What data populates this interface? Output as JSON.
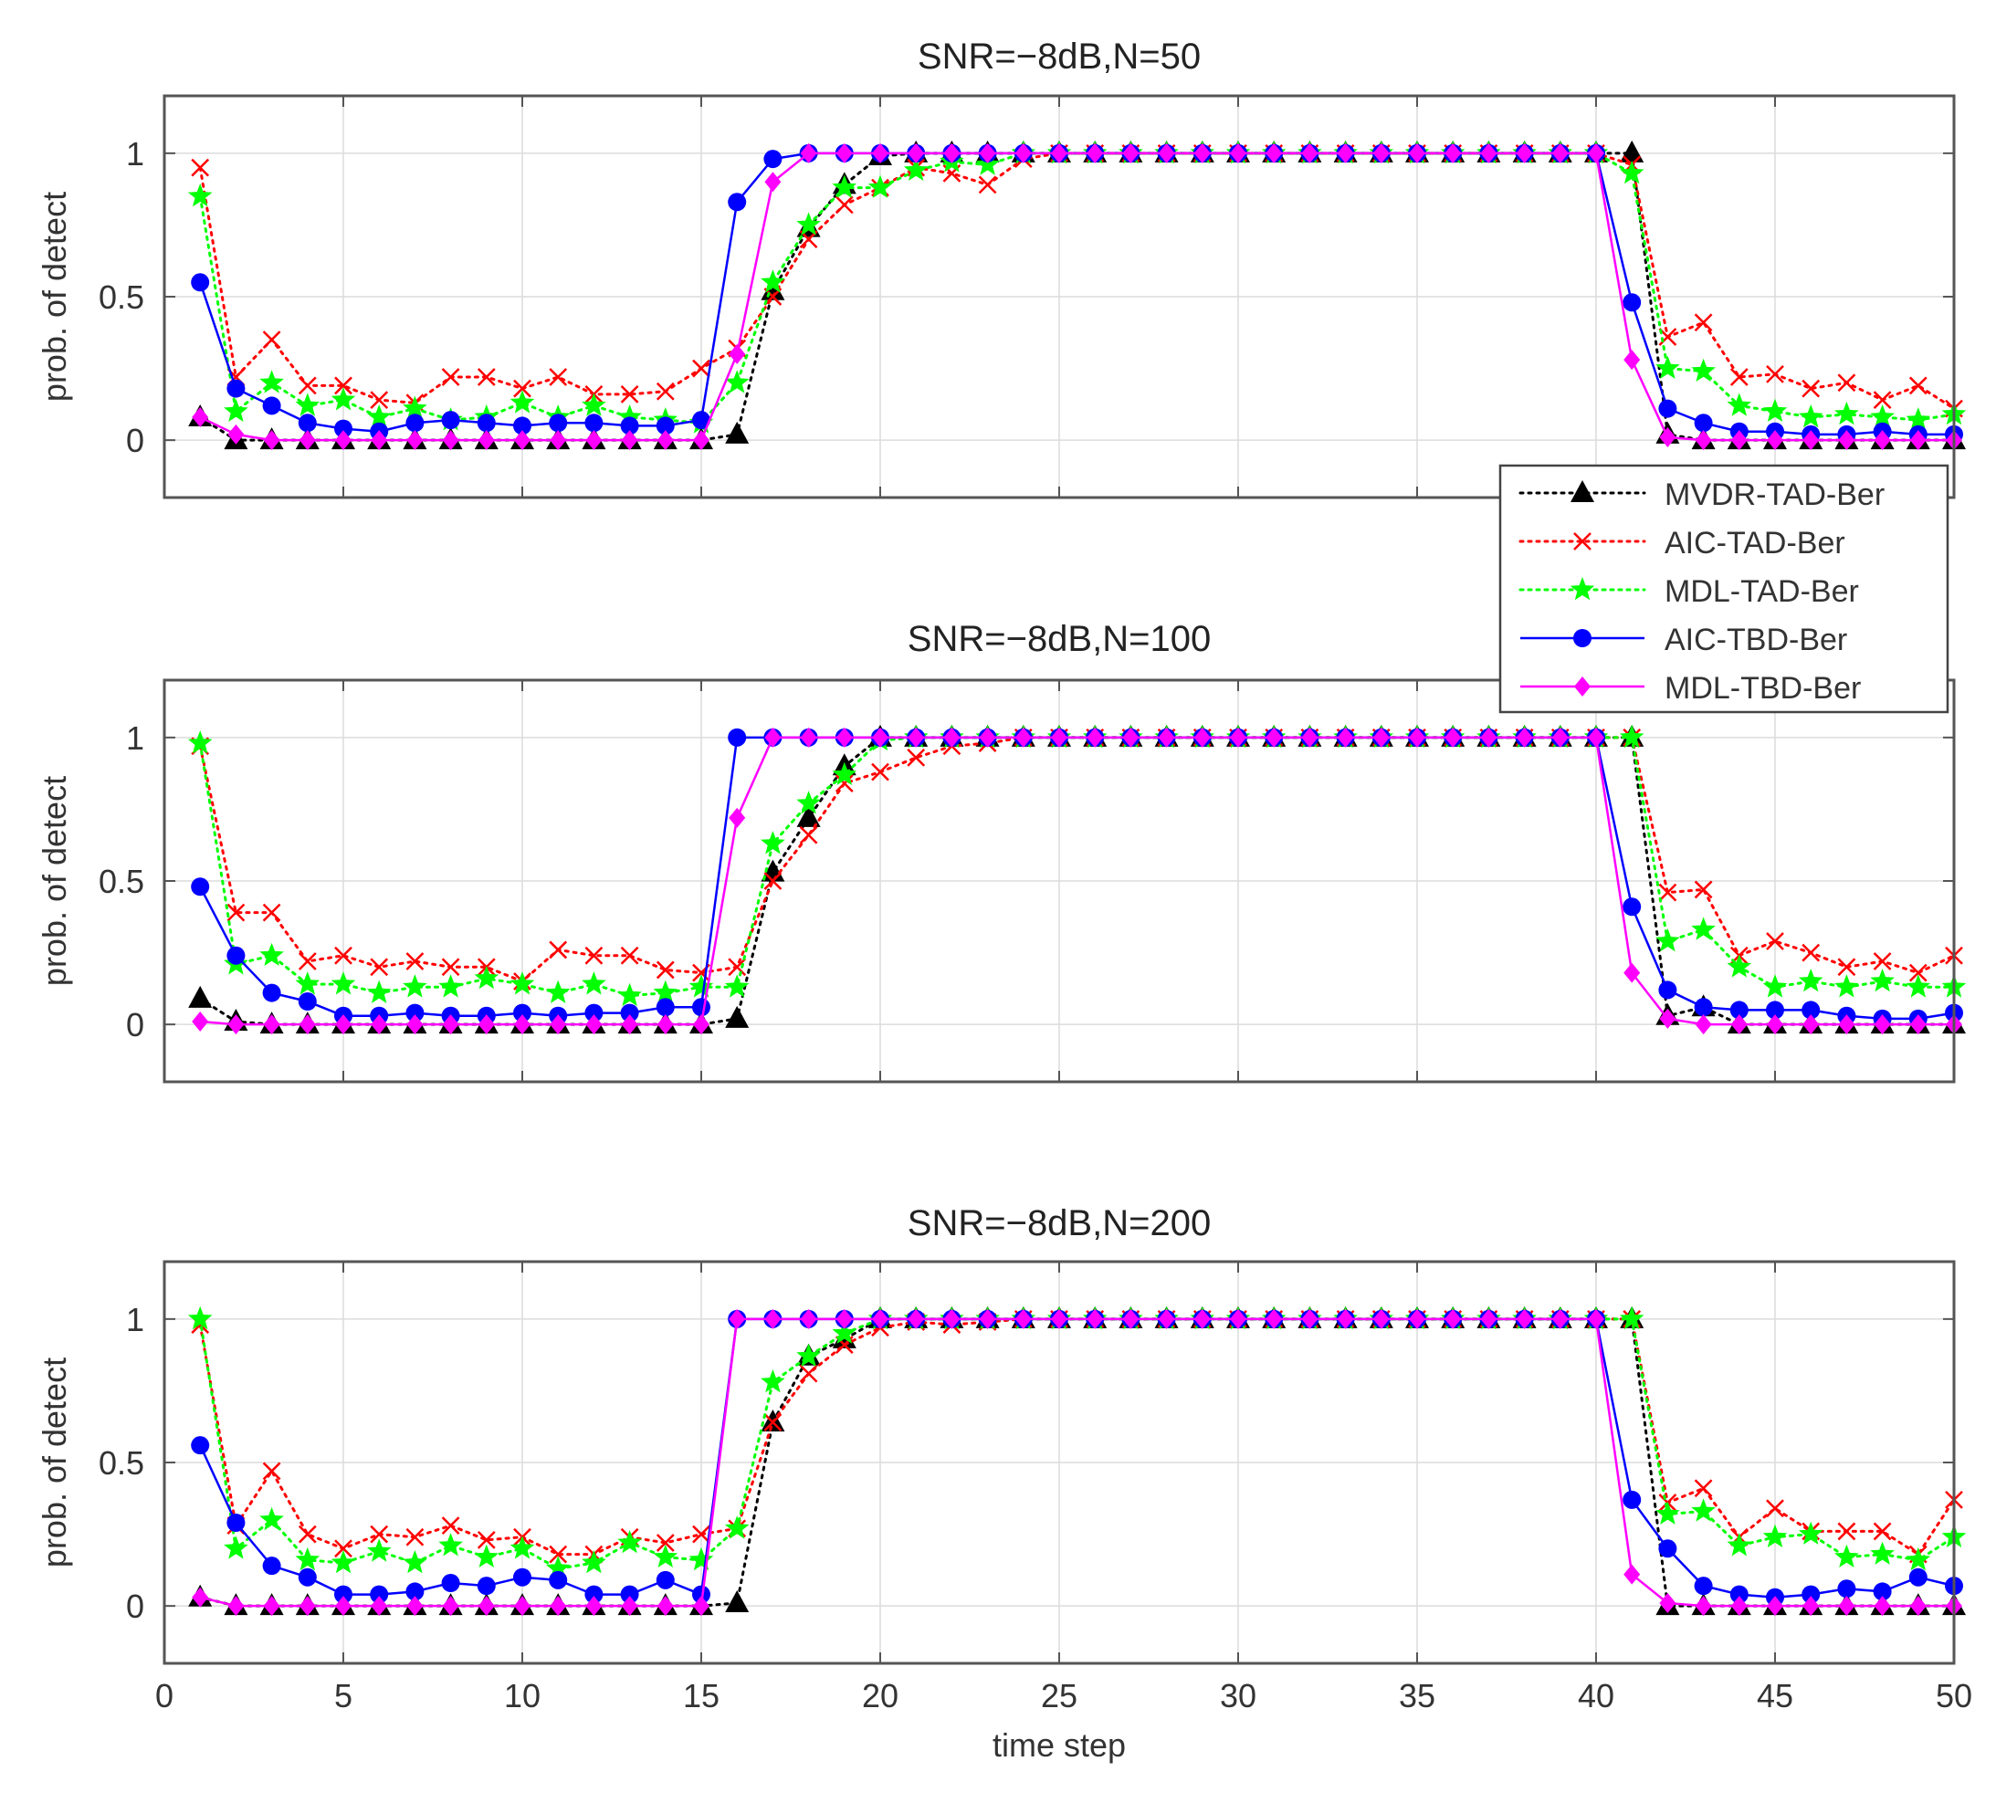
{
  "colors": {
    "MVDR-TAD-Ber": "#000000",
    "AIC-TAD-Ber": "#ff0000",
    "MDL-TAD-Ber": "#00ff00",
    "AIC-TBD-Ber": "#0000ff",
    "MDL-TBD-Ber": "#ff00ff",
    "frame": "#555555",
    "grid": "#dcdcdc"
  },
  "chart_data": [
    {
      "type": "line",
      "title": "SNR=−8dB,N=50",
      "xlabel": "",
      "ylabel": "prob. of detect",
      "xlim": [
        0,
        50
      ],
      "ylim": [
        -0.2,
        1.2
      ],
      "xticks": [
        0,
        5,
        10,
        15,
        20,
        25,
        30,
        35,
        40,
        45,
        50
      ],
      "xtick_labels": [],
      "yticks": [
        0,
        0.5,
        1
      ],
      "ytick_labels": [
        "0",
        "0.5",
        "1"
      ],
      "grid": true,
      "legend": "right, between panel 1 and panel 2",
      "legend_entries": [
        "MVDR-TAD-Ber",
        "AIC-TAD-Ber",
        "MDL-TAD-Ber",
        "AIC-TBD-Ber",
        "MDL-TBD-Ber"
      ],
      "x": [
        1,
        2,
        3,
        4,
        5,
        6,
        7,
        8,
        9,
        10,
        11,
        12,
        13,
        14,
        15,
        16,
        17,
        18,
        19,
        20,
        21,
        22,
        23,
        24,
        25,
        26,
        27,
        28,
        29,
        30,
        31,
        32,
        33,
        34,
        35,
        36,
        37,
        38,
        39,
        40,
        41,
        42,
        43,
        44,
        45,
        46,
        47,
        48,
        49,
        50
      ],
      "series": [
        {
          "name": "MVDR-TAD-Ber",
          "marker": "triangle",
          "style": "dotted",
          "values": [
            0.08,
            0,
            0,
            0,
            0,
            0,
            0,
            0,
            0,
            0,
            0,
            0,
            0,
            0,
            0,
            0.02,
            0.52,
            0.74,
            0.89,
            0.99,
            1,
            1,
            1,
            1,
            1,
            1,
            1,
            1,
            1,
            1,
            1,
            1,
            1,
            1,
            1,
            1,
            1,
            1,
            1,
            1,
            1,
            0.02,
            0,
            0,
            0,
            0,
            0,
            0,
            0,
            0
          ]
        },
        {
          "name": "AIC-TAD-Ber",
          "marker": "x",
          "style": "dotted",
          "values": [
            0.95,
            0.22,
            0.35,
            0.19,
            0.19,
            0.14,
            0.13,
            0.22,
            0.22,
            0.18,
            0.22,
            0.16,
            0.16,
            0.17,
            0.25,
            0.32,
            0.5,
            0.7,
            0.82,
            0.88,
            0.95,
            0.93,
            0.89,
            0.98,
            1,
            1,
            1,
            1,
            1,
            1,
            1,
            1,
            1,
            1,
            1,
            1,
            1,
            1,
            1,
            1,
            0.96,
            0.36,
            0.41,
            0.22,
            0.23,
            0.18,
            0.2,
            0.14,
            0.19,
            0.11
          ]
        },
        {
          "name": "MDL-TAD-Ber",
          "marker": "star",
          "style": "dotted",
          "values": [
            0.85,
            0.1,
            0.2,
            0.12,
            0.14,
            0.08,
            0.11,
            0.07,
            0.08,
            0.13,
            0.08,
            0.12,
            0.08,
            0.07,
            0.06,
            0.2,
            0.55,
            0.75,
            0.88,
            0.88,
            0.94,
            0.97,
            0.96,
            1,
            1,
            1,
            1,
            1,
            1,
            1,
            1,
            1,
            1,
            1,
            1,
            1,
            1,
            1,
            1,
            1,
            0.93,
            0.25,
            0.24,
            0.12,
            0.1,
            0.08,
            0.09,
            0.08,
            0.07,
            0.09
          ]
        },
        {
          "name": "AIC-TBD-Ber",
          "marker": "circle",
          "style": "solid",
          "values": [
            0.55,
            0.18,
            0.12,
            0.06,
            0.04,
            0.03,
            0.06,
            0.07,
            0.06,
            0.05,
            0.06,
            0.06,
            0.05,
            0.05,
            0.07,
            0.83,
            0.98,
            1,
            1,
            1,
            1,
            1,
            1,
            1,
            1,
            1,
            1,
            1,
            1,
            1,
            1,
            1,
            1,
            1,
            1,
            1,
            1,
            1,
            1,
            1,
            0.48,
            0.11,
            0.06,
            0.03,
            0.03,
            0.02,
            0.02,
            0.03,
            0.02,
            0.02
          ]
        },
        {
          "name": "MDL-TBD-Ber",
          "marker": "diamond",
          "style": "solid",
          "values": [
            0.08,
            0.02,
            0,
            0,
            0,
            0,
            0,
            0,
            0,
            0,
            0,
            0,
            0,
            0,
            0,
            0.3,
            0.9,
            1,
            1,
            1,
            1,
            1,
            1,
            1,
            1,
            1,
            1,
            1,
            1,
            1,
            1,
            1,
            1,
            1,
            1,
            1,
            1,
            1,
            1,
            1,
            0.28,
            0.01,
            0,
            0,
            0,
            0,
            0,
            0,
            0,
            0
          ]
        }
      ]
    },
    {
      "type": "line",
      "title": "SNR=−8dB,N=100",
      "xlabel": "",
      "ylabel": "prob. of detect",
      "xlim": [
        0,
        50
      ],
      "ylim": [
        -0.2,
        1.2
      ],
      "xticks": [
        0,
        5,
        10,
        15,
        20,
        25,
        30,
        35,
        40,
        45,
        50
      ],
      "xtick_labels": [],
      "yticks": [
        0,
        0.5,
        1
      ],
      "ytick_labels": [
        "0",
        "0.5",
        "1"
      ],
      "grid": true,
      "x": [
        1,
        2,
        3,
        4,
        5,
        6,
        7,
        8,
        9,
        10,
        11,
        12,
        13,
        14,
        15,
        16,
        17,
        18,
        19,
        20,
        21,
        22,
        23,
        24,
        25,
        26,
        27,
        28,
        29,
        30,
        31,
        32,
        33,
        34,
        35,
        36,
        37,
        38,
        39,
        40,
        41,
        42,
        43,
        44,
        45,
        46,
        47,
        48,
        49,
        50
      ],
      "series": [
        {
          "name": "MVDR-TAD-Ber",
          "marker": "triangle",
          "style": "dotted",
          "values": [
            0.09,
            0.01,
            0,
            0,
            0,
            0,
            0,
            0,
            0,
            0,
            0,
            0,
            0,
            0,
            0,
            0.02,
            0.53,
            0.72,
            0.9,
            1,
            1,
            1,
            1,
            1,
            1,
            1,
            1,
            1,
            1,
            1,
            1,
            1,
            1,
            1,
            1,
            1,
            1,
            1,
            1,
            1,
            1,
            0.03,
            0.06,
            0,
            0,
            0,
            0,
            0,
            0,
            0
          ]
        },
        {
          "name": "AIC-TAD-Ber",
          "marker": "x",
          "style": "dotted",
          "values": [
            0.97,
            0.39,
            0.39,
            0.22,
            0.24,
            0.2,
            0.22,
            0.2,
            0.2,
            0.15,
            0.26,
            0.24,
            0.24,
            0.19,
            0.18,
            0.2,
            0.5,
            0.66,
            0.84,
            0.88,
            0.93,
            0.97,
            0.98,
            1,
            1,
            1,
            1,
            1,
            1,
            1,
            1,
            1,
            1,
            1,
            1,
            1,
            1,
            1,
            1,
            1,
            1,
            0.46,
            0.47,
            0.24,
            0.29,
            0.25,
            0.2,
            0.22,
            0.18,
            0.24
          ]
        },
        {
          "name": "MDL-TAD-Ber",
          "marker": "star",
          "style": "dotted",
          "values": [
            0.98,
            0.21,
            0.24,
            0.14,
            0.14,
            0.11,
            0.13,
            0.13,
            0.16,
            0.14,
            0.11,
            0.14,
            0.1,
            0.11,
            0.13,
            0.13,
            0.63,
            0.77,
            0.87,
            0.99,
            1,
            1,
            1,
            1,
            1,
            1,
            1,
            1,
            1,
            1,
            1,
            1,
            1,
            1,
            1,
            1,
            1,
            1,
            1,
            1,
            1,
            0.29,
            0.33,
            0.2,
            0.13,
            0.15,
            0.13,
            0.15,
            0.13,
            0.13
          ]
        },
        {
          "name": "AIC-TBD-Ber",
          "marker": "circle",
          "style": "solid",
          "values": [
            0.48,
            0.24,
            0.11,
            0.08,
            0.03,
            0.03,
            0.04,
            0.03,
            0.03,
            0.04,
            0.03,
            0.04,
            0.04,
            0.06,
            0.06,
            1,
            1,
            1,
            1,
            1,
            1,
            1,
            1,
            1,
            1,
            1,
            1,
            1,
            1,
            1,
            1,
            1,
            1,
            1,
            1,
            1,
            1,
            1,
            1,
            1,
            0.41,
            0.12,
            0.06,
            0.05,
            0.05,
            0.05,
            0.03,
            0.02,
            0.02,
            0.04
          ]
        },
        {
          "name": "MDL-TBD-Ber",
          "marker": "diamond",
          "style": "solid",
          "values": [
            0.01,
            0,
            0,
            0,
            0,
            0,
            0,
            0,
            0,
            0,
            0,
            0,
            0,
            0,
            0,
            0.72,
            1,
            1,
            1,
            1,
            1,
            1,
            1,
            1,
            1,
            1,
            1,
            1,
            1,
            1,
            1,
            1,
            1,
            1,
            1,
            1,
            1,
            1,
            1,
            1,
            0.18,
            0.02,
            0,
            0,
            0,
            0,
            0,
            0,
            0,
            0
          ]
        }
      ]
    },
    {
      "type": "line",
      "title": "SNR=−8dB,N=200",
      "xlabel": "time step",
      "ylabel": "prob. of detect",
      "xlim": [
        0,
        50
      ],
      "ylim": [
        -0.2,
        1.2
      ],
      "xticks": [
        0,
        5,
        10,
        15,
        20,
        25,
        30,
        35,
        40,
        45,
        50
      ],
      "xtick_labels": [
        "0",
        "5",
        "10",
        "15",
        "20",
        "25",
        "30",
        "35",
        "40",
        "45",
        "50"
      ],
      "yticks": [
        0,
        0.5,
        1
      ],
      "ytick_labels": [
        "0",
        "0.5",
        "1"
      ],
      "grid": true,
      "x": [
        1,
        2,
        3,
        4,
        5,
        6,
        7,
        8,
        9,
        10,
        11,
        12,
        13,
        14,
        15,
        16,
        17,
        18,
        19,
        20,
        21,
        22,
        23,
        24,
        25,
        26,
        27,
        28,
        29,
        30,
        31,
        32,
        33,
        34,
        35,
        36,
        37,
        38,
        39,
        40,
        41,
        42,
        43,
        44,
        45,
        46,
        47,
        48,
        49,
        50
      ],
      "series": [
        {
          "name": "MVDR-TAD-Ber",
          "marker": "triangle",
          "style": "dotted",
          "values": [
            0.03,
            0,
            0,
            0,
            0,
            0,
            0,
            0,
            0,
            0,
            0,
            0,
            0,
            0,
            0,
            0.01,
            0.64,
            0.87,
            0.93,
            1,
            1,
            1,
            1,
            1,
            1,
            1,
            1,
            1,
            1,
            1,
            1,
            1,
            1,
            1,
            1,
            1,
            1,
            1,
            1,
            1,
            1,
            0,
            0,
            0,
            0,
            0,
            0,
            0,
            0,
            0
          ]
        },
        {
          "name": "AIC-TAD-Ber",
          "marker": "x",
          "style": "dotted",
          "values": [
            0.98,
            0.28,
            0.47,
            0.25,
            0.2,
            0.25,
            0.24,
            0.28,
            0.23,
            0.24,
            0.18,
            0.18,
            0.24,
            0.22,
            0.25,
            0.27,
            0.64,
            0.81,
            0.91,
            0.97,
            0.99,
            0.98,
            0.99,
            1,
            1,
            1,
            1,
            1,
            1,
            1,
            1,
            1,
            1,
            1,
            1,
            1,
            1,
            1,
            1,
            1,
            1,
            0.36,
            0.41,
            0.24,
            0.34,
            0.26,
            0.26,
            0.26,
            0.18,
            0.37
          ]
        },
        {
          "name": "MDL-TAD-Ber",
          "marker": "star",
          "style": "dotted",
          "values": [
            1,
            0.2,
            0.3,
            0.16,
            0.15,
            0.19,
            0.15,
            0.21,
            0.17,
            0.2,
            0.13,
            0.15,
            0.22,
            0.17,
            0.16,
            0.27,
            0.78,
            0.87,
            0.95,
            1,
            1,
            1,
            1,
            1,
            1,
            1,
            1,
            1,
            1,
            1,
            1,
            1,
            1,
            1,
            1,
            1,
            1,
            1,
            1,
            1,
            1,
            0.32,
            0.33,
            0.21,
            0.24,
            0.25,
            0.17,
            0.18,
            0.16,
            0.24
          ]
        },
        {
          "name": "AIC-TBD-Ber",
          "marker": "circle",
          "style": "solid",
          "values": [
            0.56,
            0.29,
            0.14,
            0.1,
            0.04,
            0.04,
            0.05,
            0.08,
            0.07,
            0.1,
            0.09,
            0.04,
            0.04,
            0.09,
            0.04,
            1,
            1,
            1,
            1,
            1,
            1,
            1,
            1,
            1,
            1,
            1,
            1,
            1,
            1,
            1,
            1,
            1,
            1,
            1,
            1,
            1,
            1,
            1,
            1,
            1,
            0.37,
            0.2,
            0.07,
            0.04,
            0.03,
            0.04,
            0.06,
            0.05,
            0.1,
            0.07
          ]
        },
        {
          "name": "MDL-TBD-Ber",
          "marker": "diamond",
          "style": "solid",
          "values": [
            0.03,
            0,
            0,
            0,
            0,
            0,
            0,
            0,
            0,
            0,
            0,
            0,
            0,
            0,
            0,
            1,
            1,
            1,
            1,
            1,
            1,
            1,
            1,
            1,
            1,
            1,
            1,
            1,
            1,
            1,
            1,
            1,
            1,
            1,
            1,
            1,
            1,
            1,
            1,
            1,
            0.11,
            0.01,
            0,
            0,
            0,
            0,
            0,
            0,
            0,
            0
          ]
        }
      ]
    }
  ]
}
